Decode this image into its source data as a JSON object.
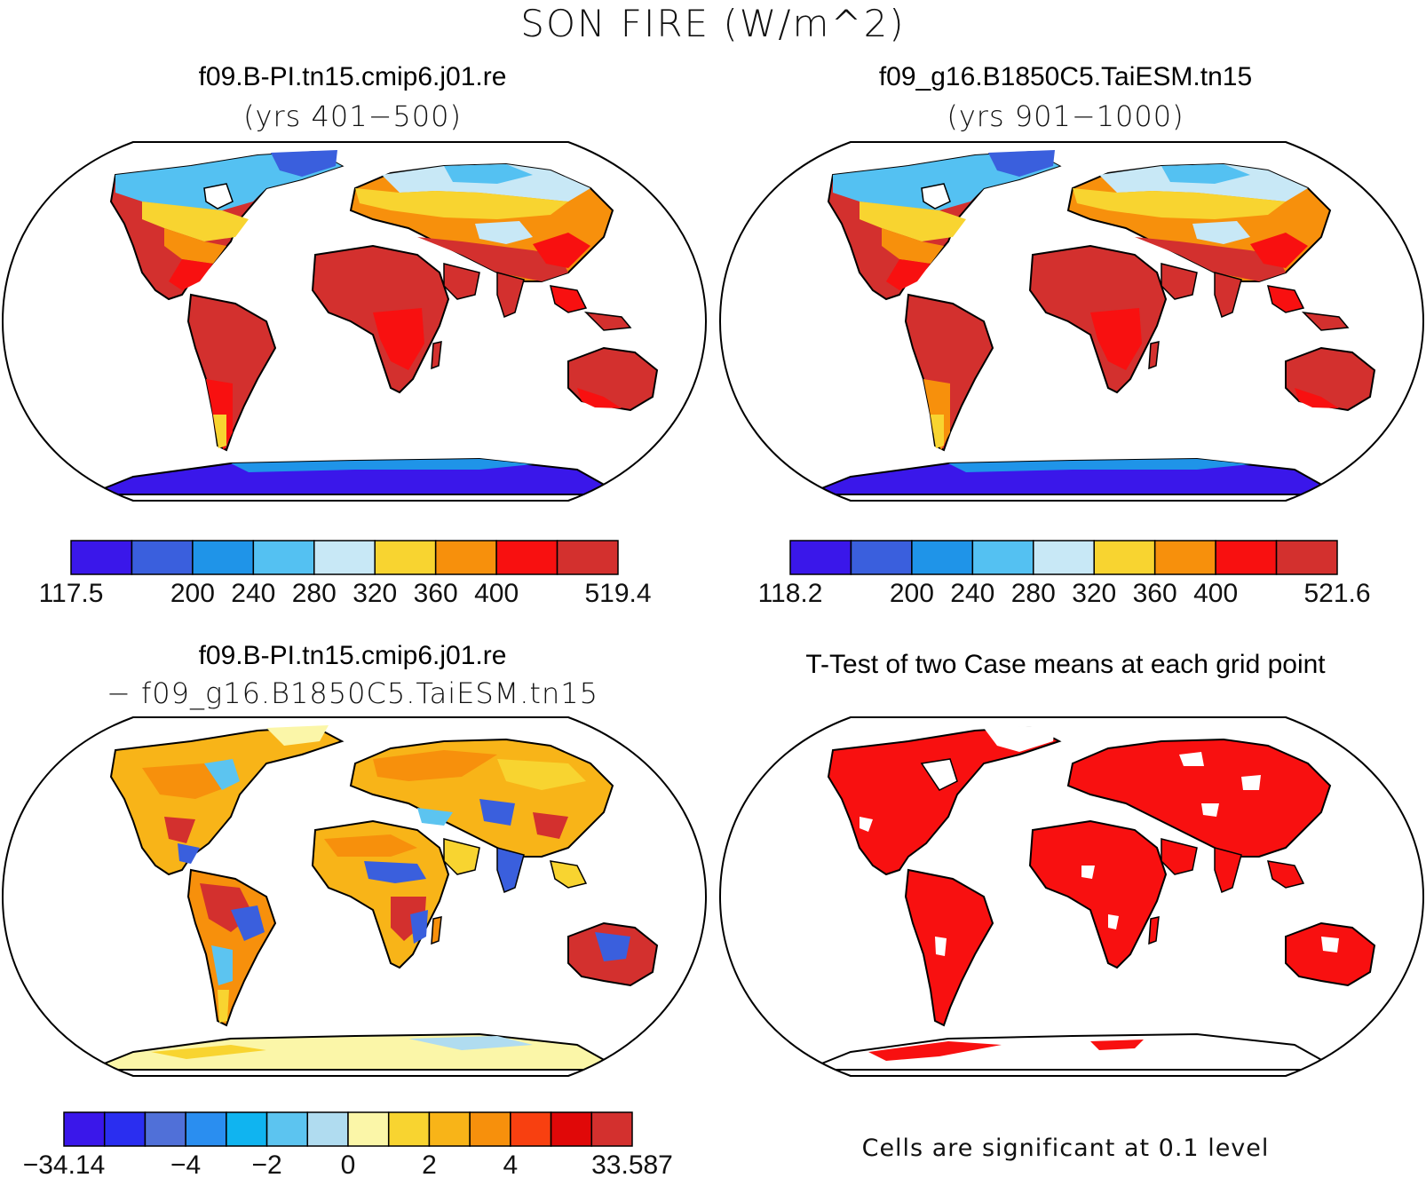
{
  "title": "SON FIRE (W/m^2)",
  "panels": [
    {
      "id": "case1",
      "title": "f09.B-PI.tn15.cmip6.j01.re",
      "subtitle": "(yrs 401−500)",
      "colorbar": {
        "colors": [
          "#3a17ea",
          "#3a5fdd",
          "#1f94e8",
          "#54c1f2",
          "#c8e8f6",
          "#f8d430",
          "#f7900c",
          "#f81010",
          "#d3302e"
        ],
        "labels": [
          "117.5",
          "200",
          "240",
          "280",
          "320",
          "360",
          "400",
          "519.4"
        ],
        "label_boundaries": [
          0,
          2,
          3,
          4,
          5,
          6,
          7,
          9
        ]
      }
    },
    {
      "id": "case2",
      "title": "f09_g16.B1850C5.TaiESM.tn15",
      "subtitle": "(yrs 901−1000)",
      "colorbar": {
        "colors": [
          "#3a17ea",
          "#3a5fdd",
          "#1f94e8",
          "#54c1f2",
          "#c8e8f6",
          "#f8d430",
          "#f7900c",
          "#f81010",
          "#d3302e"
        ],
        "labels": [
          "118.2",
          "200",
          "240",
          "280",
          "320",
          "360",
          "400",
          "521.6"
        ],
        "label_boundaries": [
          0,
          2,
          3,
          4,
          5,
          6,
          7,
          9
        ]
      }
    },
    {
      "id": "diff",
      "title": "f09.B-PI.tn15.cmip6.j01.re",
      "subtitle": "− f09_g16.B1850C5.TaiESM.tn15",
      "colorbar": {
        "colors": [
          "#3a17ea",
          "#2a2ef0",
          "#5070d8",
          "#2a8ef0",
          "#10b4f0",
          "#5cc4f0",
          "#b0dcf0",
          "#fbf6a8",
          "#f8d430",
          "#f8b418",
          "#f7900c",
          "#f84010",
          "#e00808",
          "#d3302e"
        ],
        "labels": [
          "−34.14",
          "−4",
          "−2",
          "0",
          "2",
          "4",
          "33.587"
        ],
        "label_boundaries": [
          0,
          3,
          5,
          7,
          9,
          11,
          14
        ]
      }
    },
    {
      "id": "ttest",
      "title": "T-Test of two Case means at each grid point",
      "note": "Cells are significant at 0.1 level"
    }
  ],
  "fill_colors": {
    "arctic": "#3a5fdd",
    "subarctic": "#54c1f2",
    "boreal": "#c8e8f6",
    "temperate": "#f8d430",
    "warm": "#f7900c",
    "hot": "#f81010",
    "tropical": "#d3302e",
    "antarctic": "#3a17ea",
    "antarctic_edge": "#1f94e8",
    "diff_warm": "#f7900c",
    "diff_mid": "#f8b418",
    "diff_light": "#f8d430",
    "diff_pale": "#fbf6a8",
    "diff_hot": "#d3302e",
    "diff_cold": "#3a5fdd",
    "diff_cool": "#5cc4f0",
    "sig": "#f81010"
  }
}
